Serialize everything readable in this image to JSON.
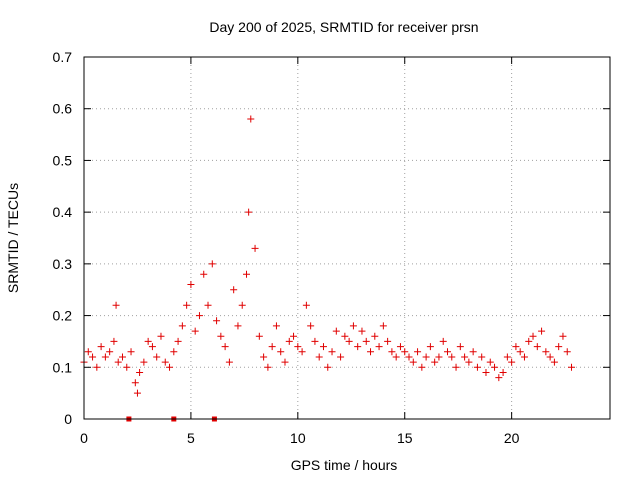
{
  "chart_data": {
    "type": "scatter",
    "title": "Day 200 of 2025, SRMTID for receiver prsn",
    "xlabel": "GPS time / hours",
    "ylabel": "SRMTID / TECUs",
    "xlim": [
      0,
      24.6
    ],
    "ylim": [
      0,
      0.7
    ],
    "xticks": [
      0,
      5,
      10,
      15,
      20
    ],
    "yticks": [
      0,
      0.1,
      0.2,
      0.3,
      0.4,
      0.5,
      0.6,
      0.7
    ],
    "xtick_labels": [
      "0",
      "5",
      "10",
      "15",
      "20"
    ],
    "ytick_labels": [
      "0",
      "0.1",
      "0.2",
      "0.3",
      "0.4",
      "0.5",
      "0.6",
      "0.7"
    ],
    "grid": true,
    "marker": "+",
    "point_color": "#e00000",
    "zero_markers_x": [
      2.1,
      4.2,
      6.1
    ],
    "series": [
      {
        "name": "SRMTID",
        "x": [
          0.0,
          0.2,
          0.4,
          0.6,
          0.8,
          1.0,
          1.2,
          1.4,
          1.5,
          1.6,
          1.8,
          2.0,
          2.2,
          2.4,
          2.5,
          2.6,
          2.8,
          3.0,
          3.2,
          3.4,
          3.6,
          3.8,
          4.0,
          4.2,
          4.4,
          4.6,
          4.8,
          5.0,
          5.2,
          5.4,
          5.6,
          5.8,
          6.0,
          6.2,
          6.4,
          6.6,
          6.8,
          7.0,
          7.2,
          7.4,
          7.6,
          7.7,
          7.8,
          8.0,
          8.2,
          8.4,
          8.6,
          8.8,
          9.0,
          9.2,
          9.4,
          9.6,
          9.8,
          10.0,
          10.2,
          10.4,
          10.6,
          10.8,
          11.0,
          11.2,
          11.4,
          11.6,
          11.8,
          12.0,
          12.2,
          12.4,
          12.6,
          12.8,
          13.0,
          13.2,
          13.4,
          13.6,
          13.8,
          14.0,
          14.2,
          14.4,
          14.6,
          14.8,
          15.0,
          15.2,
          15.4,
          15.6,
          15.8,
          16.0,
          16.2,
          16.4,
          16.6,
          16.8,
          17.0,
          17.2,
          17.4,
          17.6,
          17.8,
          18.0,
          18.2,
          18.4,
          18.6,
          18.8,
          19.0,
          19.2,
          19.4,
          19.6,
          19.8,
          20.0,
          20.2,
          20.4,
          20.6,
          20.8,
          21.0,
          21.2,
          21.4,
          21.6,
          21.8,
          22.0,
          22.2,
          22.4,
          22.6,
          22.8
        ],
        "y": [
          0.11,
          0.13,
          0.12,
          0.1,
          0.14,
          0.12,
          0.13,
          0.15,
          0.22,
          0.11,
          0.12,
          0.1,
          0.13,
          0.07,
          0.05,
          0.09,
          0.11,
          0.15,
          0.14,
          0.12,
          0.16,
          0.11,
          0.1,
          0.13,
          0.15,
          0.18,
          0.22,
          0.26,
          0.17,
          0.2,
          0.28,
          0.22,
          0.3,
          0.19,
          0.16,
          0.14,
          0.11,
          0.25,
          0.18,
          0.22,
          0.28,
          0.4,
          0.58,
          0.33,
          0.16,
          0.12,
          0.1,
          0.14,
          0.18,
          0.13,
          0.11,
          0.15,
          0.16,
          0.14,
          0.13,
          0.22,
          0.18,
          0.15,
          0.12,
          0.14,
          0.1,
          0.13,
          0.17,
          0.12,
          0.16,
          0.15,
          0.18,
          0.14,
          0.17,
          0.15,
          0.13,
          0.16,
          0.14,
          0.18,
          0.15,
          0.13,
          0.12,
          0.14,
          0.13,
          0.12,
          0.11,
          0.13,
          0.1,
          0.12,
          0.14,
          0.11,
          0.12,
          0.15,
          0.13,
          0.12,
          0.1,
          0.14,
          0.12,
          0.11,
          0.13,
          0.1,
          0.12,
          0.09,
          0.11,
          0.1,
          0.08,
          0.09,
          0.12,
          0.11,
          0.14,
          0.13,
          0.12,
          0.15,
          0.16,
          0.14,
          0.17,
          0.13,
          0.12,
          0.11,
          0.14,
          0.16,
          0.13,
          0.1
        ]
      }
    ]
  }
}
